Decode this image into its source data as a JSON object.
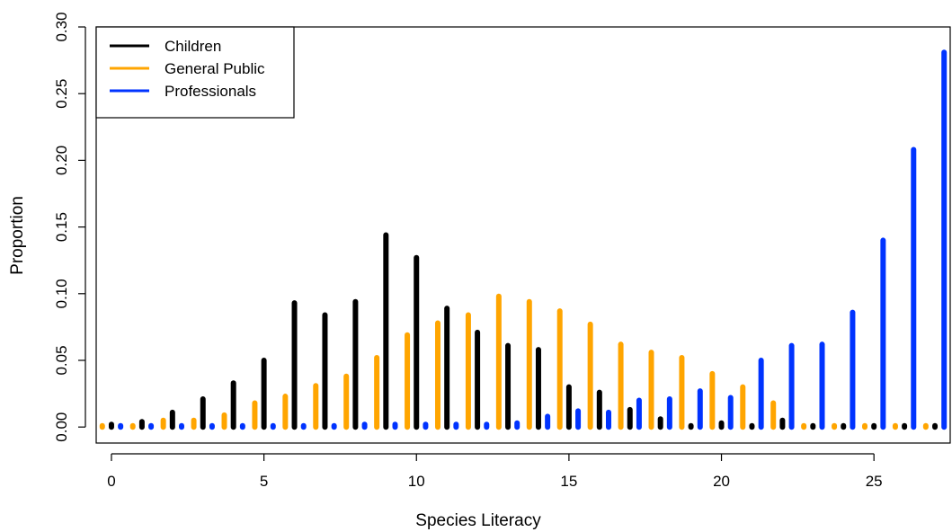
{
  "chart_data": {
    "type": "bar",
    "xlabel": "Species Literacy",
    "ylabel": "Proportion",
    "xlim": [
      -0.5,
      27.5
    ],
    "ylim": [
      -0.012,
      0.3
    ],
    "x_ticks": [
      0,
      5,
      10,
      15,
      20,
      25
    ],
    "x_tick_labels": [
      "0",
      "5",
      "10",
      "15",
      "20",
      "25"
    ],
    "y_ticks": [
      0,
      0.05,
      0.1,
      0.15,
      0.2,
      0.25,
      0.3
    ],
    "y_tick_labels": [
      "0.00",
      "0.05",
      "0.10",
      "0.15",
      "0.20",
      "0.25",
      "0.30"
    ],
    "grid": false,
    "legend_position": "top-left",
    "x": [
      0,
      1,
      2,
      3,
      4,
      5,
      6,
      7,
      8,
      9,
      10,
      11,
      12,
      13,
      14,
      15,
      16,
      17,
      18,
      19,
      20,
      21,
      22,
      23,
      24,
      25,
      26,
      27
    ],
    "series": [
      {
        "name": "Children",
        "color": "#000000",
        "values": [
          0.002,
          0.004,
          0.011,
          0.021,
          0.033,
          0.05,
          0.093,
          0.084,
          0.094,
          0.144,
          0.127,
          0.089,
          0.071,
          0.061,
          0.058,
          0.03,
          0.026,
          0.013,
          0.006,
          0.001,
          0.003,
          0.001,
          0.005,
          0.001,
          0.001,
          0.001,
          0.001,
          0.001
        ]
      },
      {
        "name": "General Public",
        "color": "#FFA500",
        "values": [
          0.001,
          0.001,
          0.005,
          0.005,
          0.009,
          0.018,
          0.023,
          0.031,
          0.038,
          0.052,
          0.069,
          0.078,
          0.084,
          0.098,
          0.094,
          0.087,
          0.077,
          0.062,
          0.056,
          0.052,
          0.04,
          0.03,
          0.018,
          0.001,
          0.001,
          0.001,
          0.001,
          0.001
        ]
      },
      {
        "name": "Professionals",
        "color": "#0033FF",
        "values": [
          0.001,
          0.001,
          0.001,
          0.001,
          0.001,
          0.001,
          0.001,
          0.001,
          0.002,
          0.002,
          0.002,
          0.002,
          0.002,
          0.003,
          0.008,
          0.012,
          0.011,
          0.02,
          0.021,
          0.027,
          0.022,
          0.05,
          0.061,
          0.062,
          0.086,
          0.14,
          0.208,
          0.281
        ]
      }
    ]
  }
}
